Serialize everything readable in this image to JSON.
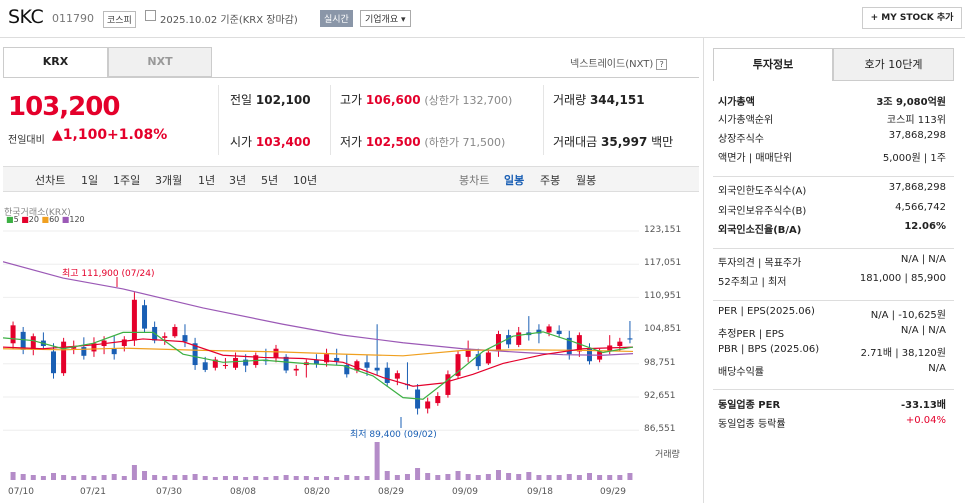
{
  "header": {
    "name": "SKC",
    "code": "011790",
    "market": "코스피",
    "date": "2025.10.02 기준(KRX 장마감)",
    "realtime": "실시간",
    "corp_info": "기업개요",
    "my_stock": "+ MY STOCK 추가"
  },
  "tabs": {
    "krx": "KRX",
    "nxt": "NXT",
    "nxt_trade": "넥스트레이드(NXT)"
  },
  "quote": {
    "price": "103,200",
    "change_label": "전일대비",
    "change": "1,100",
    "change_pct": "+1.08%",
    "prev_label": "전일",
    "prev": "102,100",
    "open_label": "시가",
    "open": "103,400",
    "high_label": "고가",
    "high": "106,600",
    "upper_limit": "(상한가 132,700)",
    "low_label": "저가",
    "low": "102,500",
    "lower_limit": "(하한가 71,500)",
    "volume_label": "거래량",
    "volume": "344,151",
    "amount_label": "거래대금",
    "amount": "35,997",
    "amount_unit": "백만"
  },
  "chart_toolbar": {
    "line_label": "선차트",
    "periods": [
      "1일",
      "1주일",
      "3개월",
      "1년",
      "3년",
      "5년",
      "10년"
    ],
    "candle_label": "봉차트",
    "candle_periods": [
      "일봉",
      "주봉",
      "월봉"
    ]
  },
  "chart_data": {
    "type": "candlestick",
    "source": "한국거래소(KRX)",
    "ma_legend": [
      "5",
      "20",
      "60",
      "120"
    ],
    "ma_colors": [
      "#3cb043",
      "#e4002b",
      "#f0a020",
      "#9b59b6"
    ],
    "y_ticks": [
      "123,151",
      "117,051",
      "110,951",
      "104,851",
      "98,751",
      "92,651",
      "86,551"
    ],
    "x_ticks": [
      "07/10",
      "07/21",
      "07/30",
      "08/08",
      "08/20",
      "08/29",
      "09/09",
      "09/18",
      "09/29"
    ],
    "high_annot": "최고 111,900 (07/24)",
    "low_annot": "최저 89,400 (09/02)",
    "volume_label": "거래량"
  },
  "side": {
    "tab_invest": "투자정보",
    "tab_quote": "호가 10단계",
    "rows": [
      {
        "l": "시가총액",
        "v": "3조 9,080억원",
        "b": true
      },
      {
        "l": "시가총액순위",
        "v": "코스피 113위"
      },
      {
        "l": "상장주식수",
        "v": "37,868,298"
      },
      {
        "l": "액면가 | 매매단위",
        "v": "5,000원 | 1주"
      },
      {
        "l": "외국인한도주식수(A)",
        "v": "37,868,298"
      },
      {
        "l": "외국인보유주식수(B)",
        "v": "4,566,742"
      },
      {
        "l": "외국인소진율(B/A)",
        "v": "12.06%",
        "b": true
      },
      {
        "l": "투자의견 | 목표주가",
        "v": "N/A | N/A"
      },
      {
        "l": "52주최고 | 최저",
        "v": "181,000 | 85,900"
      },
      {
        "l": "PER | EPS(2025.06)",
        "v": "N/A | -10,625원"
      },
      {
        "l": "추정PER | EPS",
        "v": "N/A | N/A"
      },
      {
        "l": "PBR | BPS (2025.06)",
        "v": "2.71배 | 38,120원"
      },
      {
        "l": "배당수익률",
        "v": "N/A"
      },
      {
        "l": "동일업종 PER",
        "v": "-33.13배",
        "b": true
      },
      {
        "l": "동일업종 등락률",
        "v": "+0.04%",
        "red": true
      }
    ]
  }
}
